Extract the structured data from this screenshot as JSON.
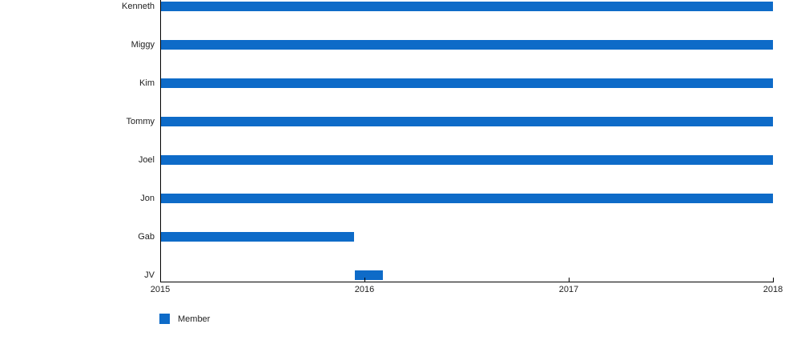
{
  "chart_data": {
    "type": "bar",
    "subtype": "timeline-gantt",
    "orientation": "horizontal",
    "title": "",
    "categories": [
      "Kenneth",
      "Miggy",
      "Kim",
      "Tommy",
      "Joel",
      "Jon",
      "Gab",
      "JV"
    ],
    "series": [
      {
        "name": "Member",
        "color": "#0e6bc8",
        "ranges": [
          [
            2015.0,
            2018.0
          ],
          [
            2015.0,
            2018.0
          ],
          [
            2015.0,
            2018.0
          ],
          [
            2015.0,
            2018.0
          ],
          [
            2015.0,
            2018.0
          ],
          [
            2015.0,
            2018.0
          ],
          [
            2015.0,
            2015.95
          ],
          [
            2015.95,
            2016.09
          ]
        ]
      }
    ],
    "x_axis": {
      "min": 2015,
      "max": 2018,
      "ticks": [
        2015,
        2016,
        2017,
        2018
      ],
      "tick_labels": [
        "2015",
        "2016",
        "2017",
        "2018"
      ]
    },
    "y_axis": {
      "labels": [
        "Kenneth",
        "Miggy",
        "Kim",
        "Tommy",
        "Joel",
        "Jon",
        "Gab",
        "JV"
      ]
    },
    "grid": false,
    "legend": {
      "position": "bottom-left",
      "entries": [
        {
          "label": "Member",
          "color": "#0e6bc8"
        }
      ]
    }
  },
  "colors": {
    "bar": "#0e6bc8",
    "axis": "#000000",
    "text": "#222222",
    "background": "#ffffff"
  }
}
